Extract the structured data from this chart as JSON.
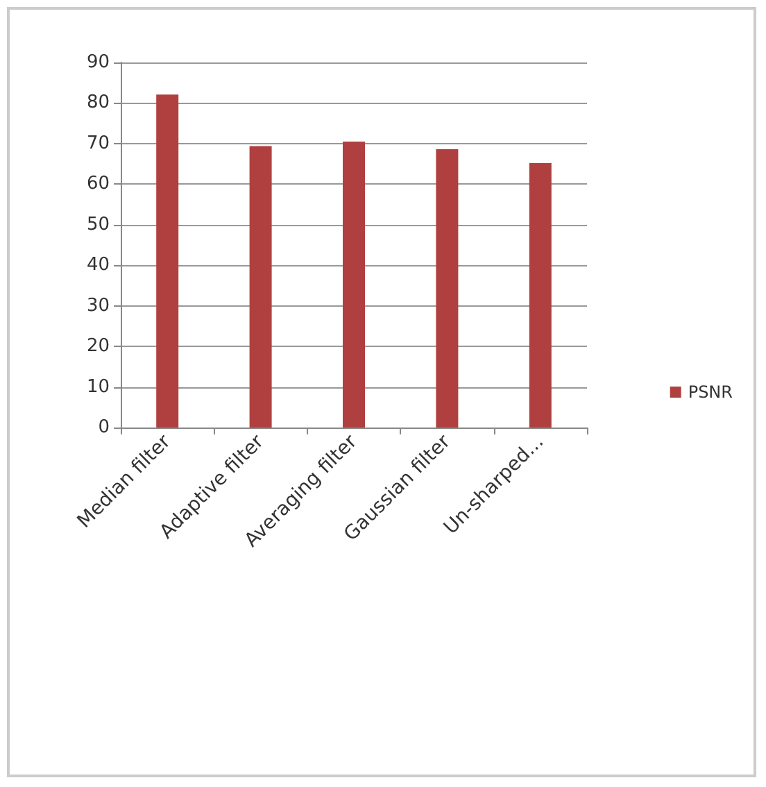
{
  "chart_data": {
    "type": "bar",
    "categories": [
      "Median filter",
      "Adaptive filter",
      "Averaging filter",
      "Gaussian filter",
      "Un-sharped..."
    ],
    "series": [
      {
        "name": "PSNR",
        "color": "#b04040",
        "values": [
          82.1,
          69.4,
          70.5,
          68.6,
          65.2
        ]
      }
    ],
    "ylim": [
      0,
      90
    ],
    "yticks": [
      0,
      10,
      20,
      30,
      40,
      50,
      60,
      70,
      80,
      90
    ],
    "grid": "y",
    "legend": "right"
  }
}
